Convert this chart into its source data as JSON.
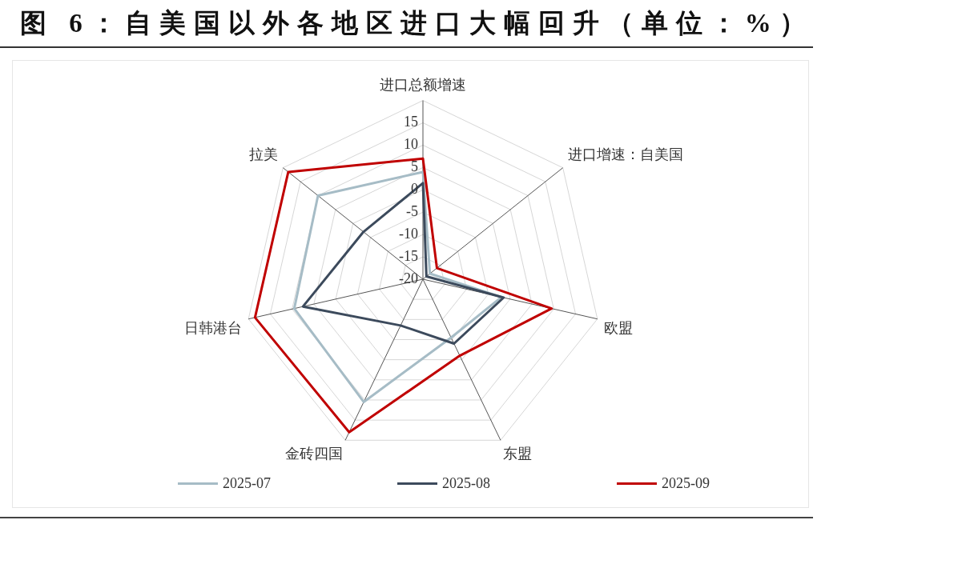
{
  "chart_data": {
    "type": "radar",
    "title": "图 6：自美国以外各地区进口大幅回升（单位：%）",
    "categories": [
      "进口总额增速",
      "进口增速：自美国",
      "欧盟",
      "东盟",
      "金砖四国",
      "日韩港台",
      "拉美"
    ],
    "series": [
      {
        "name": "2025-07",
        "color": "#a6bcc6",
        "values": [
          4,
          -18,
          -2,
          -5.5,
          10.5,
          9.5,
          10
        ]
      },
      {
        "name": "2025-08",
        "color": "#3c4a5c",
        "values": [
          1.5,
          -19,
          -1.5,
          -4,
          -8.5,
          7.5,
          -3
        ]
      },
      {
        "name": "2025-09",
        "color": "#c00000",
        "values": [
          7,
          -16,
          9.5,
          -1,
          18,
          18.5,
          18.5
        ]
      }
    ],
    "ylim": [
      -20,
      20
    ],
    "yticks": [
      -20,
      -15,
      -10,
      -5,
      0,
      5,
      10,
      15
    ],
    "grid": true,
    "legend": "bottom"
  }
}
